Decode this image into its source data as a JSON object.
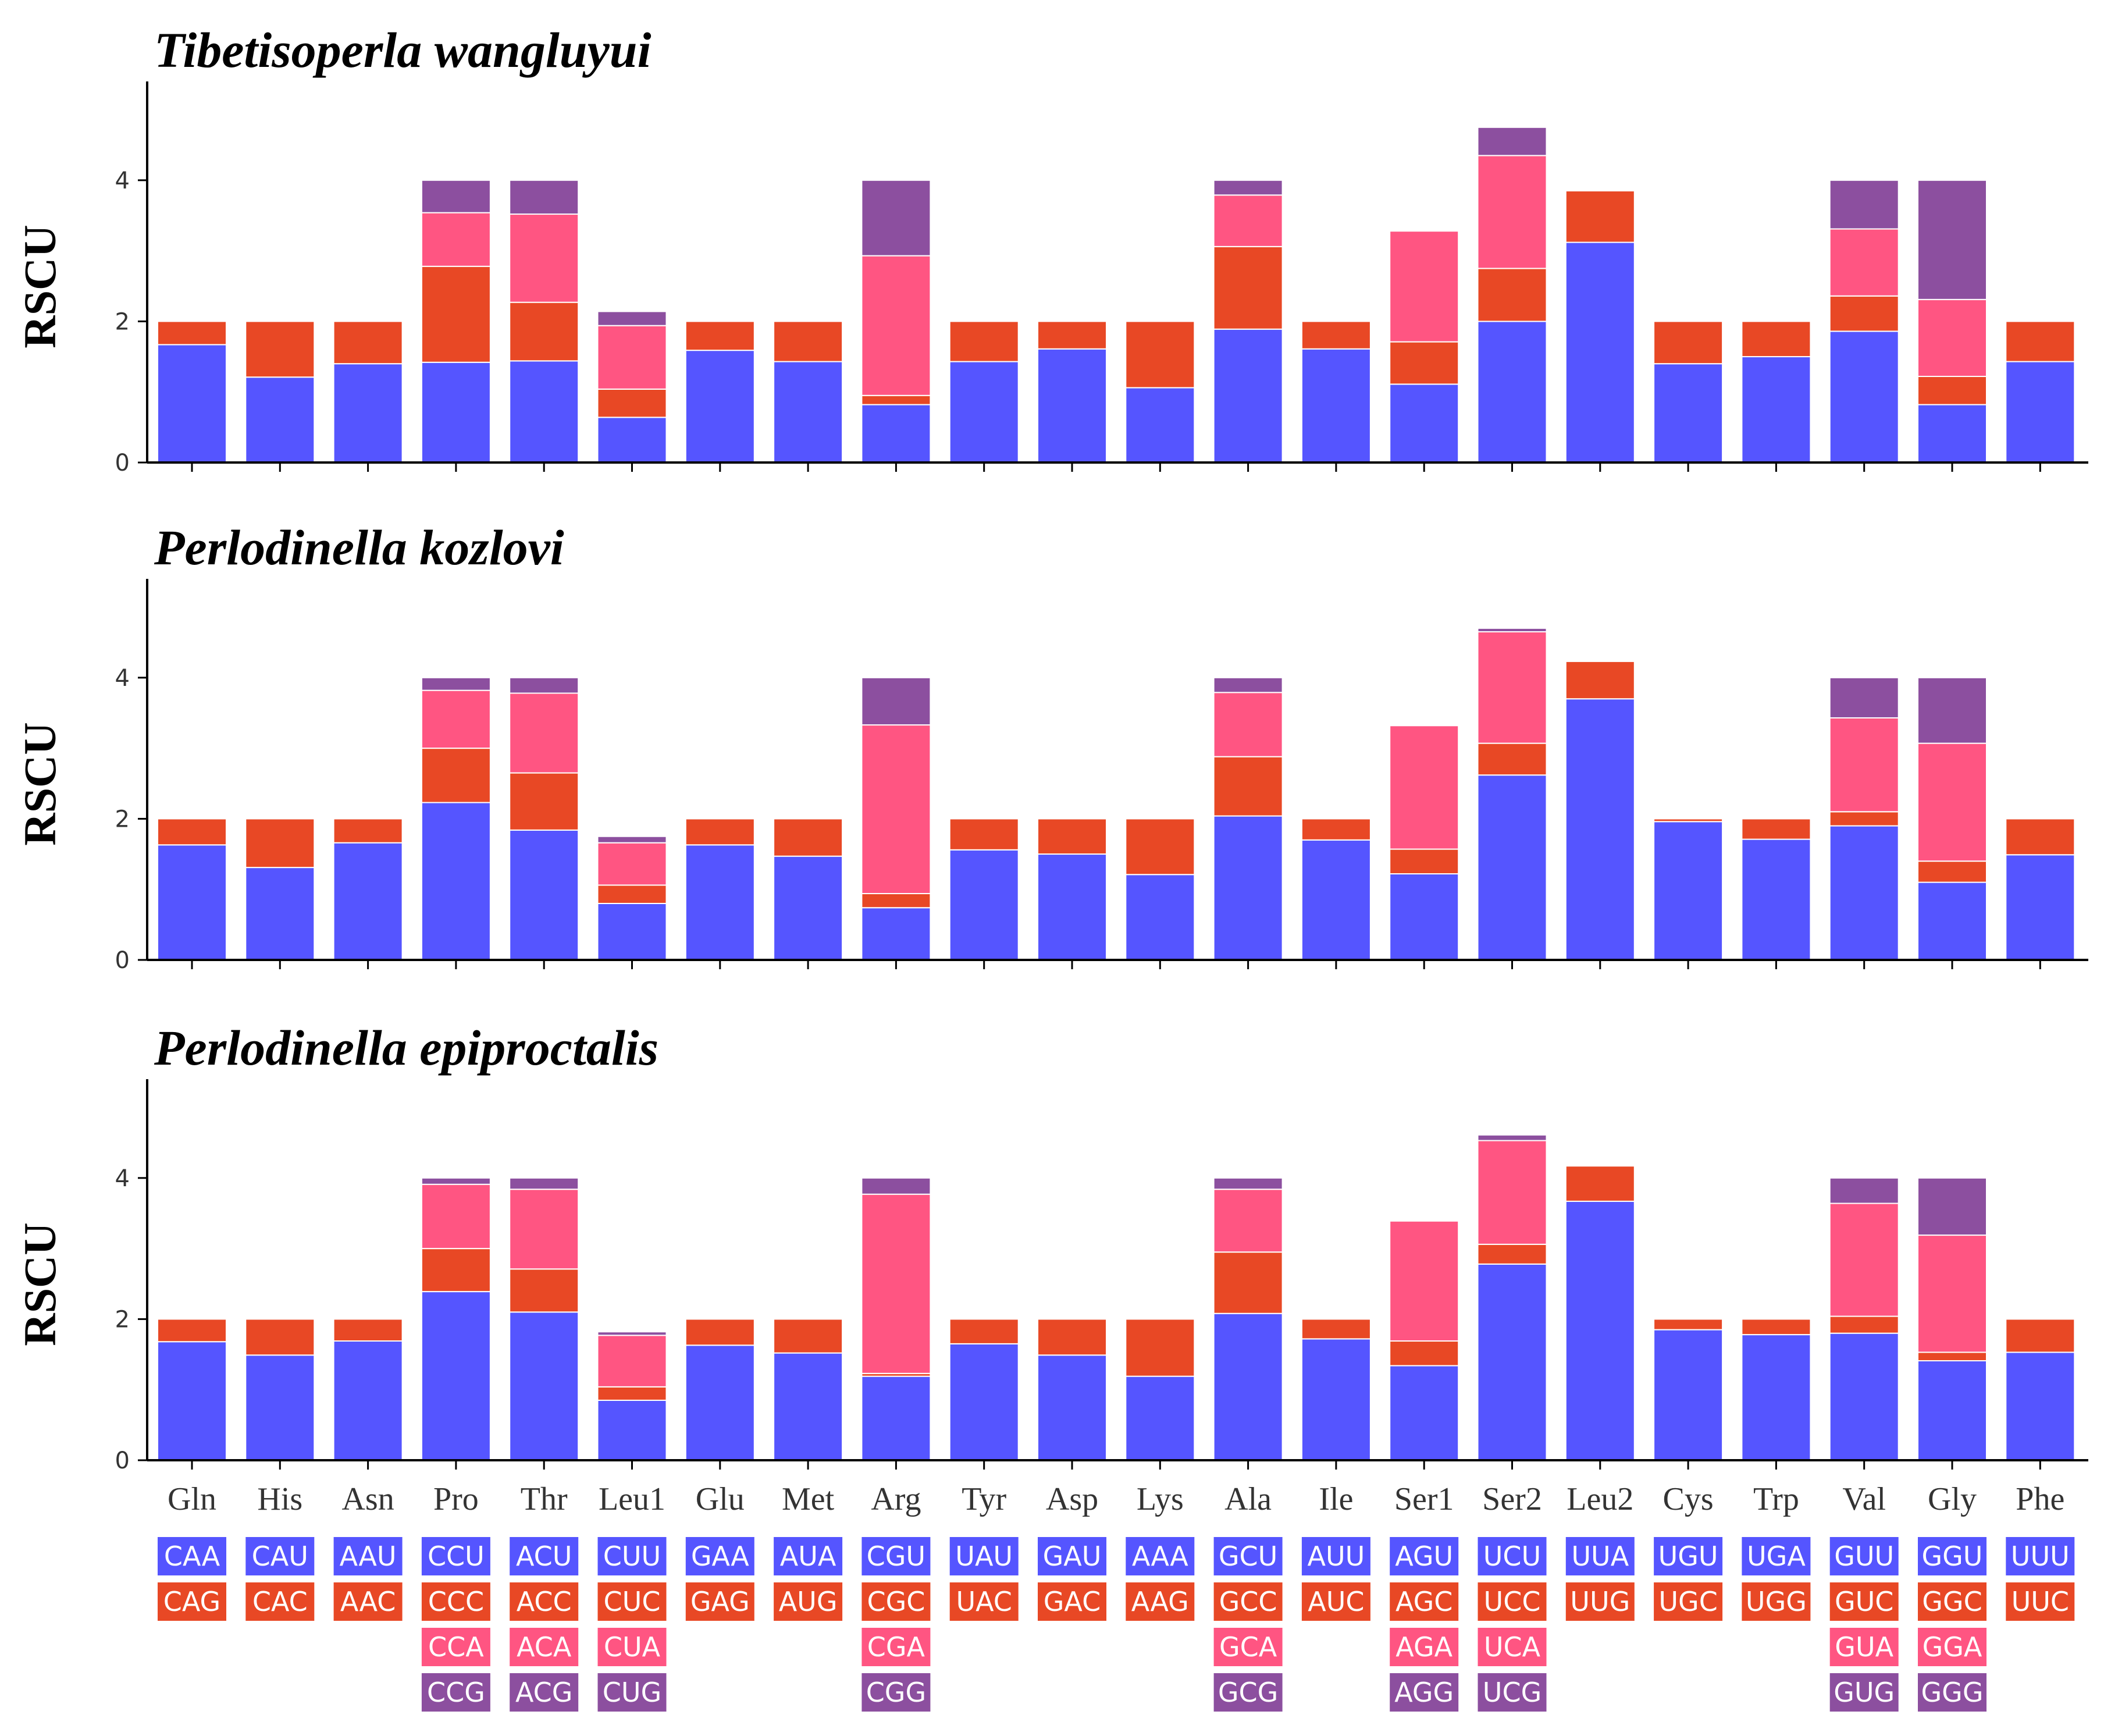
{
  "colors": {
    "codon1": "#5555ff",
    "codon2": "#e84825",
    "codon3": "#ff5582",
    "codon4": "#8c4f9f",
    "axis": "#000000"
  },
  "chart_data": [
    {
      "type": "bar",
      "stacked": true,
      "title": "Tibetisoperla wangluyui",
      "ylabel": "RSCU",
      "ylim": [
        0,
        5.4
      ],
      "yticks": [
        0,
        2,
        4
      ],
      "categories": [
        "Gln",
        "His",
        "Asn",
        "Pro",
        "Thr",
        "Leu1",
        "Glu",
        "Met",
        "Arg",
        "Tyr",
        "Asp",
        "Lys",
        "Ala",
        "Ile",
        "Ser1",
        "Ser2",
        "Leu2",
        "Cys",
        "Trp",
        "Val",
        "Gly",
        "Phe"
      ],
      "segments": [
        [
          1.67,
          0.33
        ],
        [
          1.21,
          0.79
        ],
        [
          1.4,
          0.6
        ],
        [
          1.42,
          1.36,
          0.76,
          0.46
        ],
        [
          1.44,
          0.83,
          1.25,
          0.48
        ],
        [
          0.64,
          0.4,
          0.9,
          0.2
        ],
        [
          1.59,
          0.41
        ],
        [
          1.43,
          0.57
        ],
        [
          0.82,
          0.13,
          1.98,
          1.07
        ],
        [
          1.43,
          0.57
        ],
        [
          1.61,
          0.39
        ],
        [
          1.06,
          0.94
        ],
        [
          1.89,
          1.17,
          0.73,
          0.21
        ],
        [
          1.61,
          0.39
        ],
        [
          1.11,
          0.6,
          1.57,
          0.0
        ],
        [
          2.0,
          0.75,
          1.6,
          0.4
        ],
        [
          3.12,
          0.73
        ],
        [
          1.4,
          0.6
        ],
        [
          1.5,
          0.5
        ],
        [
          1.86,
          0.5,
          0.95,
          0.69
        ],
        [
          0.82,
          0.4,
          1.09,
          1.69
        ],
        [
          1.43,
          0.57
        ]
      ]
    },
    {
      "type": "bar",
      "stacked": true,
      "title": "Perlodinella kozlovi",
      "ylabel": "RSCU",
      "ylim": [
        0,
        5.4
      ],
      "yticks": [
        0,
        2,
        4
      ],
      "categories": [
        "Gln",
        "His",
        "Asn",
        "Pro",
        "Thr",
        "Leu1",
        "Glu",
        "Met",
        "Arg",
        "Tyr",
        "Asp",
        "Lys",
        "Ala",
        "Ile",
        "Ser1",
        "Ser2",
        "Leu2",
        "Cys",
        "Trp",
        "Val",
        "Gly",
        "Phe"
      ],
      "segments": [
        [
          1.63,
          0.37
        ],
        [
          1.31,
          0.69
        ],
        [
          1.66,
          0.34
        ],
        [
          2.23,
          0.77,
          0.82,
          0.18
        ],
        [
          1.84,
          0.81,
          1.13,
          0.22
        ],
        [
          0.8,
          0.26,
          0.6,
          0.09
        ],
        [
          1.63,
          0.37
        ],
        [
          1.47,
          0.53
        ],
        [
          0.74,
          0.2,
          2.39,
          0.67
        ],
        [
          1.56,
          0.44
        ],
        [
          1.5,
          0.5
        ],
        [
          1.21,
          0.79
        ],
        [
          2.04,
          0.84,
          0.91,
          0.21
        ],
        [
          1.7,
          0.3
        ],
        [
          1.22,
          0.35,
          1.75,
          0.0
        ],
        [
          2.62,
          0.45,
          1.58,
          0.05
        ],
        [
          3.7,
          0.53
        ],
        [
          1.96,
          0.04
        ],
        [
          1.71,
          0.29
        ],
        [
          1.9,
          0.2,
          1.33,
          0.57
        ],
        [
          1.1,
          0.3,
          1.67,
          0.93
        ],
        [
          1.49,
          0.51
        ]
      ]
    },
    {
      "type": "bar",
      "stacked": true,
      "title": "Perlodinella epiproctalis",
      "ylabel": "RSCU",
      "ylim": [
        0,
        5.4
      ],
      "yticks": [
        0,
        2,
        4
      ],
      "categories": [
        "Gln",
        "His",
        "Asn",
        "Pro",
        "Thr",
        "Leu1",
        "Glu",
        "Met",
        "Arg",
        "Tyr",
        "Asp",
        "Lys",
        "Ala",
        "Ile",
        "Ser1",
        "Ser2",
        "Leu2",
        "Cys",
        "Trp",
        "Val",
        "Gly",
        "Phe"
      ],
      "segments": [
        [
          1.68,
          0.32
        ],
        [
          1.49,
          0.51
        ],
        [
          1.69,
          0.31
        ],
        [
          2.39,
          0.61,
          0.91,
          0.09
        ],
        [
          2.1,
          0.61,
          1.13,
          0.16
        ],
        [
          0.85,
          0.19,
          0.73,
          0.05
        ],
        [
          1.63,
          0.37
        ],
        [
          1.52,
          0.48
        ],
        [
          1.19,
          0.04,
          2.54,
          0.23
        ],
        [
          1.65,
          0.35
        ],
        [
          1.49,
          0.51
        ],
        [
          1.19,
          0.81
        ],
        [
          2.08,
          0.87,
          0.89,
          0.16
        ],
        [
          1.72,
          0.28
        ],
        [
          1.34,
          0.35,
          1.7,
          0.0
        ],
        [
          2.78,
          0.28,
          1.47,
          0.08
        ],
        [
          3.67,
          0.5
        ],
        [
          1.85,
          0.15
        ],
        [
          1.78,
          0.22
        ],
        [
          1.8,
          0.24,
          1.6,
          0.36
        ],
        [
          1.41,
          0.12,
          1.66,
          0.81
        ],
        [
          1.53,
          0.47
        ]
      ]
    }
  ],
  "codon_table": [
    [
      "CAA",
      "CAG"
    ],
    [
      "CAU",
      "CAC"
    ],
    [
      "AAU",
      "AAC"
    ],
    [
      "CCU",
      "CCC",
      "CCA",
      "CCG"
    ],
    [
      "ACU",
      "ACC",
      "ACA",
      "ACG"
    ],
    [
      "CUU",
      "CUC",
      "CUA",
      "CUG"
    ],
    [
      "GAA",
      "GAG"
    ],
    [
      "AUA",
      "AUG"
    ],
    [
      "CGU",
      "CGC",
      "CGA",
      "CGG"
    ],
    [
      "UAU",
      "UAC"
    ],
    [
      "GAU",
      "GAC"
    ],
    [
      "AAA",
      "AAG"
    ],
    [
      "GCU",
      "GCC",
      "GCA",
      "GCG"
    ],
    [
      "AUU",
      "AUC"
    ],
    [
      "AGU",
      "AGC",
      "AGA",
      "AGG"
    ],
    [
      "UCU",
      "UCC",
      "UCA",
      "UCG"
    ],
    [
      "UUA",
      "UUG"
    ],
    [
      "UGU",
      "UGC"
    ],
    [
      "UGA",
      "UGG"
    ],
    [
      "GUU",
      "GUC",
      "GUA",
      "GUG"
    ],
    [
      "GGU",
      "GGC",
      "GGA",
      "GGG"
    ],
    [
      "UUU",
      "UUC"
    ]
  ]
}
